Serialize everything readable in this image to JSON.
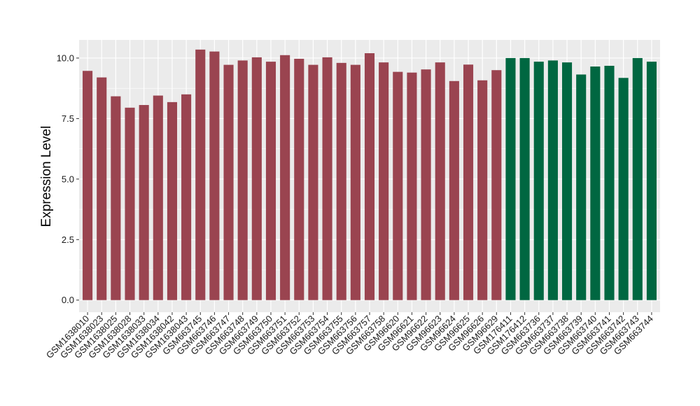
{
  "chart_data": {
    "type": "bar",
    "title": "",
    "xlabel": "",
    "ylabel": "Expression Level",
    "ylim": [
      -0.5,
      10.75
    ],
    "yticks": [
      0.0,
      2.5,
      5.0,
      7.5,
      10.0
    ],
    "ytick_labels": [
      "0.0",
      "2.5",
      "5.0",
      "7.5",
      "10.0"
    ],
    "grid": true,
    "legend": "none",
    "categories": [
      "GSM1638010",
      "GSM1638023",
      "GSM1638025",
      "GSM1638028",
      "GSM1638033",
      "GSM1638034",
      "GSM1638042",
      "GSM1638043",
      "GSM663745",
      "GSM663746",
      "GSM663747",
      "GSM663748",
      "GSM663749",
      "GSM663750",
      "GSM663751",
      "GSM663752",
      "GSM663753",
      "GSM663754",
      "GSM663755",
      "GSM663756",
      "GSM663757",
      "GSM663758",
      "GSM96620",
      "GSM96621",
      "GSM96622",
      "GSM96623",
      "GSM96624",
      "GSM96625",
      "GSM96626",
      "GSM96629",
      "GSM176411",
      "GSM176412",
      "GSM663736",
      "GSM663737",
      "GSM663738",
      "GSM663739",
      "GSM663740",
      "GSM663741",
      "GSM663742",
      "GSM663743",
      "GSM663744"
    ],
    "values": [
      9.47,
      9.2,
      8.42,
      7.95,
      8.06,
      8.45,
      8.18,
      8.5,
      10.35,
      10.27,
      9.72,
      9.9,
      10.03,
      9.85,
      10.12,
      9.97,
      9.72,
      10.03,
      9.8,
      9.72,
      10.2,
      9.82,
      9.43,
      9.4,
      9.53,
      9.82,
      9.05,
      9.73,
      9.08,
      9.5,
      10.0,
      10.0,
      9.85,
      9.9,
      9.82,
      9.32,
      9.65,
      9.68,
      9.18,
      10.0,
      9.85
    ],
    "colors": {
      "group_1": "#9a4450",
      "group_2": "#006741",
      "panel_background": "#ebebeb",
      "grid": "#ffffff"
    },
    "group_index": [
      1,
      1,
      1,
      1,
      1,
      1,
      1,
      1,
      1,
      1,
      1,
      1,
      1,
      1,
      1,
      1,
      1,
      1,
      1,
      1,
      1,
      1,
      1,
      1,
      1,
      1,
      1,
      1,
      1,
      1,
      2,
      2,
      2,
      2,
      2,
      2,
      2,
      2,
      2,
      2,
      2
    ]
  }
}
